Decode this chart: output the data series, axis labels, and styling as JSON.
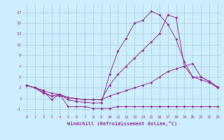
{
  "background_color": "#cceeff",
  "grid_color": "#aacccc",
  "line_color": "#993399",
  "xlabel": "Windchill (Refroidissement éolien,°C)",
  "xlim": [
    -0.5,
    23.5
  ],
  "ylim": [
    -2,
    18.5
  ],
  "xticks": [
    0,
    1,
    2,
    3,
    4,
    5,
    6,
    7,
    8,
    9,
    10,
    11,
    12,
    13,
    14,
    15,
    16,
    17,
    18,
    19,
    20,
    21,
    22,
    23
  ],
  "yticks": [
    -1,
    1,
    3,
    5,
    7,
    9,
    11,
    13,
    15,
    17
  ],
  "line1_x": [
    0,
    1,
    2,
    3,
    4,
    5,
    6,
    7,
    8,
    9,
    10,
    11,
    12,
    13,
    14,
    15,
    16,
    17,
    18,
    19,
    20,
    21,
    22,
    23
  ],
  "line1_y": [
    3.5,
    3.0,
    2.5,
    2.0,
    1.8,
    0.8,
    0.5,
    0.3,
    0.2,
    0.2,
    5.5,
    9.8,
    12.2,
    15.0,
    15.5,
    17.2,
    16.5,
    14.8,
    12.0,
    7.8,
    5.0,
    4.5,
    4.0,
    3.0
  ],
  "line2_x": [
    0,
    1,
    2,
    3,
    4,
    5,
    6,
    7,
    8,
    9,
    10,
    11,
    12,
    13,
    14,
    15,
    16,
    17,
    18,
    19,
    20,
    21,
    22,
    23
  ],
  "line2_y": [
    3.5,
    3.0,
    2.2,
    1.5,
    1.5,
    1.2,
    1.0,
    0.8,
    0.8,
    0.8,
    3.5,
    5.5,
    7.0,
    8.5,
    10.0,
    11.5,
    13.0,
    16.5,
    16.0,
    7.0,
    5.0,
    5.0,
    4.2,
    3.1
  ],
  "line3_x": [
    0,
    1,
    2,
    3,
    4,
    5,
    6,
    7,
    8,
    9,
    10,
    11,
    12,
    13,
    14,
    15,
    16,
    17,
    18,
    19,
    20,
    21,
    22,
    23
  ],
  "line3_y": [
    3.5,
    3.0,
    2.0,
    1.5,
    1.8,
    1.2,
    1.0,
    0.8,
    0.8,
    0.8,
    1.5,
    2.0,
    2.5,
    3.0,
    3.5,
    4.0,
    5.0,
    6.0,
    6.5,
    7.0,
    7.5,
    5.0,
    4.2,
    3.2
  ],
  "line4_x": [
    0,
    1,
    2,
    3,
    4,
    5,
    6,
    7,
    8,
    9,
    10,
    11,
    12,
    13,
    14,
    15,
    16,
    17,
    18,
    19,
    20,
    21,
    22,
    23
  ],
  "line4_y": [
    3.5,
    3.0,
    2.5,
    0.8,
    1.8,
    -0.5,
    -0.5,
    -0.5,
    -0.8,
    -0.8,
    -0.8,
    -0.5,
    -0.5,
    -0.5,
    -0.5,
    -0.5,
    -0.5,
    -0.5,
    -0.5,
    -0.5,
    -0.5,
    -0.5,
    -0.5,
    -0.5
  ]
}
